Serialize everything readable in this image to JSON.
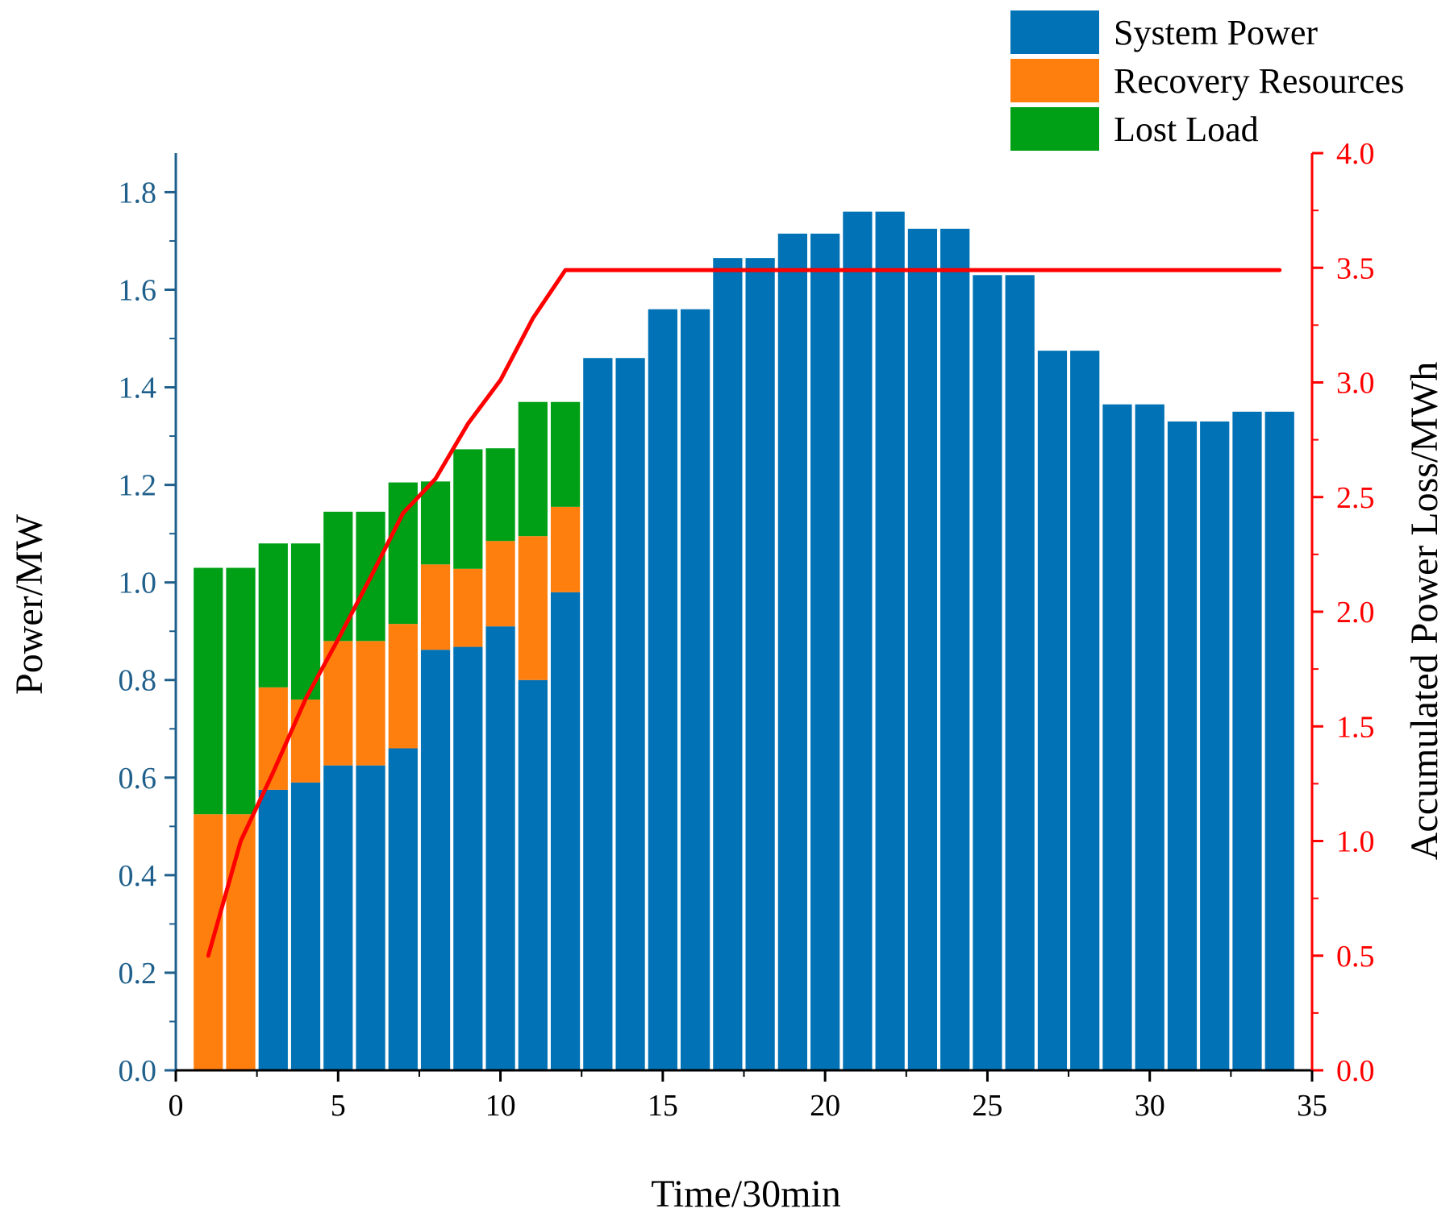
{
  "chart_data": {
    "type": "bar",
    "title": "",
    "xlabel": "Time/30min",
    "ylabel": "Power/MW",
    "y2label": "Accumulated Power Loss/MWh",
    "xlim": [
      0,
      35
    ],
    "ylim": [
      0,
      1.88
    ],
    "y2lim": [
      0,
      4.0
    ],
    "x_ticks": [
      0,
      5,
      10,
      15,
      20,
      25,
      30,
      35
    ],
    "y_ticks": [
      0.0,
      0.2,
      0.4,
      0.6,
      0.8,
      1.0,
      1.2,
      1.4,
      1.6,
      1.8
    ],
    "y2_ticks": [
      0.0,
      0.5,
      1.0,
      1.5,
      2.0,
      2.5,
      3.0,
      3.5,
      4.0
    ],
    "y_tick_labels": [
      "0.0",
      "0.2",
      "0.4",
      "0.6",
      "0.8",
      "1.0",
      "1.2",
      "1.4",
      "1.6",
      "1.8"
    ],
    "y2_tick_labels": [
      "0.0",
      "0.5",
      "1.0",
      "1.5",
      "2.0",
      "2.5",
      "3.0",
      "3.5",
      "4.0"
    ],
    "x_tick_labels": [
      "0",
      "5",
      "10",
      "15",
      "20",
      "25",
      "30",
      "35"
    ],
    "legend_position": "top-right",
    "categories": [
      1,
      2,
      3,
      4,
      5,
      6,
      7,
      8,
      9,
      10,
      11,
      12,
      13,
      14,
      15,
      16,
      17,
      18,
      19,
      20,
      21,
      22,
      23,
      24,
      25,
      26,
      27,
      28,
      29,
      30,
      31,
      32,
      33,
      34
    ],
    "series": [
      {
        "name": "System Power",
        "type": "stacked-bar",
        "color": "#0072b5",
        "values": [
          0,
          0,
          0.575,
          0.59,
          0.625,
          0.625,
          0.66,
          0.862,
          0.868,
          0.91,
          0.8,
          0.98,
          1.46,
          1.46,
          1.56,
          1.56,
          1.665,
          1.665,
          1.715,
          1.715,
          1.76,
          1.76,
          1.725,
          1.725,
          1.63,
          1.63,
          1.475,
          1.475,
          1.365,
          1.365,
          1.33,
          1.33,
          1.35,
          1.35
        ]
      },
      {
        "name": "Recovery Resources",
        "type": "stacked-bar",
        "color": "#ff7f0e",
        "values": [
          0.525,
          0.525,
          0.21,
          0.17,
          0.255,
          0.255,
          0.255,
          0.175,
          0.16,
          0.175,
          0.295,
          0.175,
          0,
          0,
          0,
          0,
          0,
          0,
          0,
          0,
          0,
          0,
          0,
          0,
          0,
          0,
          0,
          0,
          0,
          0,
          0,
          0,
          0,
          0
        ]
      },
      {
        "name": "Lost Load",
        "type": "stacked-bar",
        "color": "#00a016",
        "values": [
          0.505,
          0.505,
          0.295,
          0.32,
          0.265,
          0.265,
          0.29,
          0.17,
          0.245,
          0.19,
          0.275,
          0.215,
          0,
          0,
          0,
          0,
          0,
          0,
          0,
          0,
          0,
          0,
          0,
          0,
          0,
          0,
          0,
          0,
          0,
          0,
          0,
          0,
          0,
          0
        ]
      },
      {
        "name": "Accumulated Power Loss",
        "type": "line",
        "axis": "right",
        "color": "#ff0000",
        "x": [
          1,
          2,
          3,
          4,
          5,
          6,
          7,
          8,
          9,
          10,
          11,
          12,
          34
        ],
        "values": [
          0.5,
          1.0,
          1.3,
          1.62,
          1.88,
          2.15,
          2.43,
          2.58,
          2.82,
          3.01,
          3.28,
          3.49,
          3.49
        ]
      }
    ]
  }
}
